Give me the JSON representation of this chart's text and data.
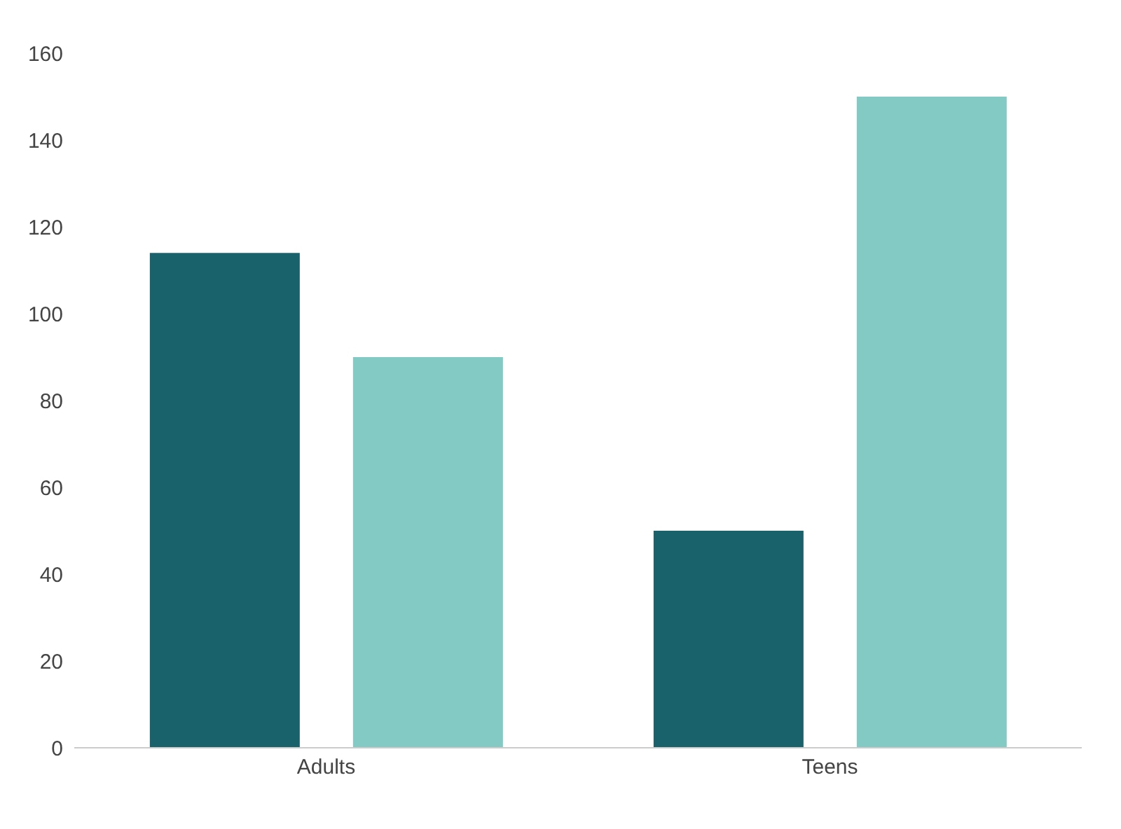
{
  "chart_data": {
    "type": "bar",
    "categories": [
      "Adults",
      "Teens"
    ],
    "series": [
      {
        "color": "#1a626b",
        "values": [
          114,
          50
        ]
      },
      {
        "color": "#82cac3",
        "values": [
          90,
          150
        ]
      }
    ],
    "ylim": [
      0,
      160
    ],
    "yticks": [
      0,
      20,
      40,
      60,
      80,
      100,
      120,
      140,
      160
    ],
    "grid": false,
    "legend": false
  }
}
